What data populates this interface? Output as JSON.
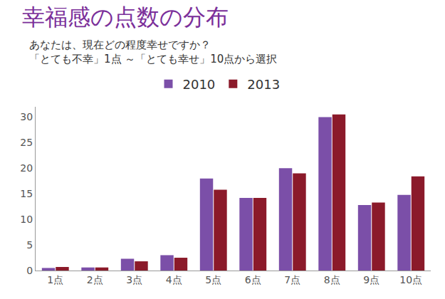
{
  "chart_data": {
    "type": "bar",
    "title": "幸福感の点数の分布",
    "subtitle": [
      "あなたは、現在どの程度幸せですか？",
      "「とても不幸」1点 ～「とても幸せ」10点から選択"
    ],
    "categories": [
      "1点",
      "2点",
      "3点",
      "4点",
      "5点",
      "6点",
      "7点",
      "8点",
      "9点",
      "10点"
    ],
    "series": [
      {
        "name": "2010",
        "color": "#7b4fa8",
        "values": [
          0.5,
          0.6,
          2.3,
          3.0,
          18.0,
          14.2,
          20.0,
          30.0,
          12.8,
          14.8
        ]
      },
      {
        "name": "2013",
        "color": "#8b1a2a",
        "values": [
          0.7,
          0.6,
          1.8,
          2.5,
          15.8,
          14.2,
          19.0,
          30.5,
          13.3,
          18.4
        ]
      }
    ],
    "ylim": [
      0,
      32
    ],
    "yticks": [
      0,
      5,
      10,
      15,
      20,
      25,
      30
    ],
    "grid": false,
    "legend": "top"
  }
}
